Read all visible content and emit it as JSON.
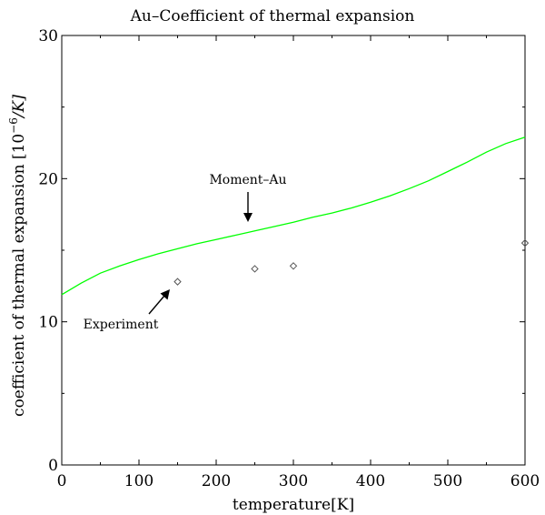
{
  "chart_data": {
    "type": "line",
    "title": "Au–Coefficient of thermal expansion",
    "xlabel": "temperature[K]",
    "ylabel_text": "coefficient of thermal expansion [10",
    "ylabel_sup": "−6",
    "ylabel_unit": "/K]",
    "xlim": [
      0,
      600
    ],
    "ylim": [
      0,
      30
    ],
    "x_ticks": [
      0,
      100,
      200,
      300,
      400,
      500,
      600
    ],
    "y_ticks": [
      0,
      10,
      20,
      30
    ],
    "grid": false,
    "series": [
      {
        "name": "Moment–Au",
        "style": "line",
        "color": "#00ff00",
        "x": [
          0,
          25,
          50,
          75,
          100,
          125,
          150,
          175,
          200,
          225,
          250,
          275,
          300,
          325,
          350,
          375,
          400,
          425,
          450,
          475,
          500,
          525,
          550,
          575,
          600
        ],
        "y": [
          11.9,
          12.7,
          13.4,
          13.9,
          14.35,
          14.75,
          15.1,
          15.45,
          15.75,
          16.05,
          16.35,
          16.65,
          16.95,
          17.3,
          17.6,
          17.95,
          18.35,
          18.8,
          19.3,
          19.85,
          20.5,
          21.15,
          21.85,
          22.45,
          22.9
        ]
      },
      {
        "name": "Experiment",
        "style": "markers",
        "color": "#555555",
        "x": [
          150,
          250,
          300,
          600
        ],
        "y": [
          12.8,
          13.7,
          13.9,
          15.5
        ]
      }
    ],
    "annotations": [
      {
        "text": "Moment–Au",
        "target_series": 0
      },
      {
        "text": "Experiment",
        "target_series": 1
      }
    ]
  }
}
